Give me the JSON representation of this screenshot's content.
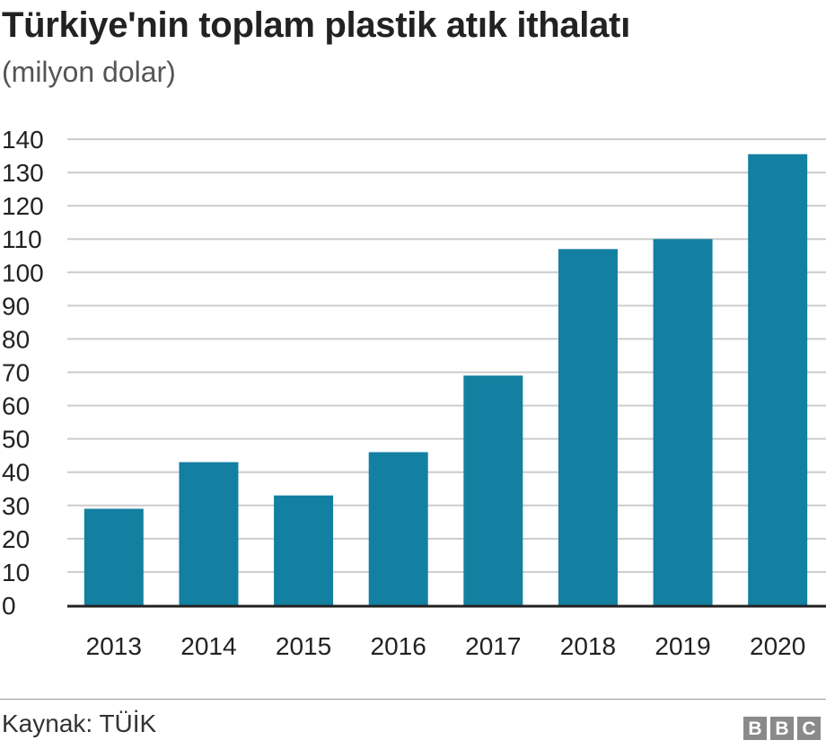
{
  "chart_data": {
    "type": "bar",
    "title": "Türkiye'nin toplam plastik atık ithalatı",
    "subtitle": "(milyon dolar)",
    "categories": [
      "2013",
      "2014",
      "2015",
      "2016",
      "2017",
      "2018",
      "2019",
      "2020"
    ],
    "values": [
      29,
      43,
      33,
      46,
      69,
      107,
      110,
      135.5
    ],
    "ylim": [
      0,
      140
    ],
    "yticks": [
      "0",
      "10",
      "20",
      "30",
      "40",
      "50",
      "60",
      "70",
      "80",
      "90",
      "100",
      "110",
      "120",
      "130",
      "140"
    ],
    "grid": true,
    "bar_color": "#1380a1"
  },
  "footer": {
    "source": "Kaynak: TÜİK",
    "logo": [
      "B",
      "B",
      "C"
    ]
  }
}
